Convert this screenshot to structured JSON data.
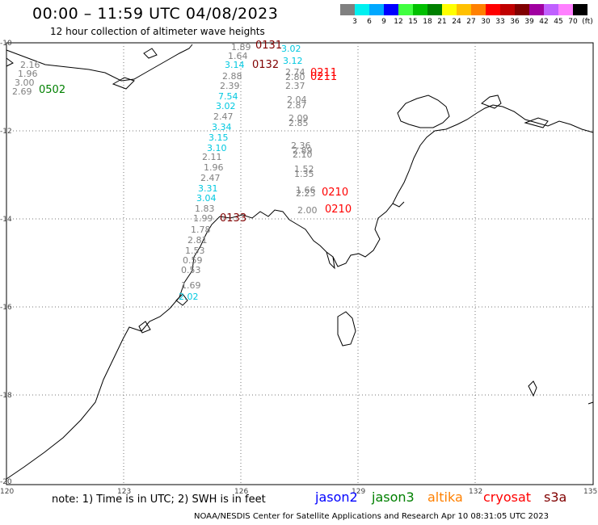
{
  "title": "00:00 – 11:59 UTC 04/08/2023",
  "subtitle": "12 hour collection of altimeter wave heights",
  "scale": {
    "unit": "(ft)",
    "colors": [
      "#808080",
      "#00f0f0",
      "#00a8ff",
      "#0000ff",
      "#40ff40",
      "#00c000",
      "#008000",
      "#ffff00",
      "#ffc000",
      "#ff8000",
      "#ff0000",
      "#c00000",
      "#800000",
      "#a000a0",
      "#c060ff",
      "#ff80ff",
      "#000000"
    ],
    "labels": [
      "3",
      "6",
      "9",
      "12",
      "15",
      "18",
      "21",
      "24",
      "27",
      "30",
      "33",
      "36",
      "39",
      "42",
      "45",
      "70"
    ]
  },
  "axes": {
    "lat_labels": [
      "-10",
      "-12",
      "-14",
      "-16",
      "-18",
      "-20"
    ],
    "lon_labels": [
      "120",
      "123",
      "126",
      "129",
      "132",
      "135"
    ]
  },
  "observations": [
    {
      "t": "2.16",
      "c": "#808080"
    },
    {
      "t": "1.96",
      "c": "#808080"
    },
    {
      "t": "3.00",
      "c": "#808080"
    },
    {
      "t": "2.69",
      "c": "#808080"
    },
    {
      "t": "1.89",
      "c": "#808080"
    },
    {
      "t": "1.64",
      "c": "#808080"
    },
    {
      "t": "3.14",
      "c": "#00c8e0"
    },
    {
      "t": "2.88",
      "c": "#808080"
    },
    {
      "t": "2.39",
      "c": "#808080"
    },
    {
      "t": "7.54",
      "c": "#00c8e0"
    },
    {
      "t": "3.02",
      "c": "#00c8e0"
    },
    {
      "t": "2.47",
      "c": "#808080"
    },
    {
      "t": "3.34",
      "c": "#00c8e0"
    },
    {
      "t": "3.15",
      "c": "#00c8e0"
    },
    {
      "t": "3.10",
      "c": "#00c8e0"
    },
    {
      "t": "1.96",
      "c": "#808080"
    },
    {
      "t": "2.11",
      "c": "#808080"
    },
    {
      "t": "2.47",
      "c": "#808080"
    },
    {
      "t": "3.31",
      "c": "#00c8e0"
    },
    {
      "t": "3.04",
      "c": "#00c8e0"
    },
    {
      "t": "1.83",
      "c": "#808080"
    },
    {
      "t": "1.99",
      "c": "#808080"
    },
    {
      "t": "1.78",
      "c": "#808080"
    },
    {
      "t": "2.81",
      "c": "#808080"
    },
    {
      "t": "1.53",
      "c": "#808080"
    },
    {
      "t": "0.59",
      "c": "#808080"
    },
    {
      "t": "0.53",
      "c": "#808080"
    },
    {
      "t": "1.69",
      "c": "#808080"
    },
    {
      "t": "2.02",
      "c": "#00c8e0"
    },
    {
      "t": "3.02",
      "c": "#00c8e0"
    },
    {
      "t": "3.12",
      "c": "#00c8e0"
    },
    {
      "t": "2.74",
      "c": "#808080"
    },
    {
      "t": "2.80",
      "c": "#808080"
    },
    {
      "t": "2.37",
      "c": "#808080"
    },
    {
      "t": "2.04",
      "c": "#808080"
    },
    {
      "t": "2.87",
      "c": "#808080"
    },
    {
      "t": "2.09",
      "c": "#808080"
    },
    {
      "t": "2.85",
      "c": "#808080"
    },
    {
      "t": "2.36",
      "c": "#808080"
    },
    {
      "t": "2.89",
      "c": "#808080"
    },
    {
      "t": "2.10",
      "c": "#808080"
    },
    {
      "t": "1.52",
      "c": "#808080"
    },
    {
      "t": "1.35",
      "c": "#808080"
    },
    {
      "t": "1.66",
      "c": "#808080"
    },
    {
      "t": "2.23",
      "c": "#808080"
    },
    {
      "t": "2.00",
      "c": "#808080"
    }
  ],
  "time_tags": [
    {
      "t": "0502",
      "c": "#008000"
    },
    {
      "t": "0131",
      "c": "#800000"
    },
    {
      "t": "0132",
      "c": "#800000"
    },
    {
      "t": "0211",
      "c": "#ff0000"
    },
    {
      "t": "0211",
      "c": "#ff0000"
    },
    {
      "t": "0210",
      "c": "#ff0000"
    },
    {
      "t": "0210",
      "c": "#ff0000"
    },
    {
      "t": "0133",
      "c": "#800000"
    }
  ],
  "note": "note: 1) Time is in UTC; 2) SWH is in feet",
  "satellites": [
    {
      "name": "jason2",
      "color": "#0000ff"
    },
    {
      "name": "jason3",
      "color": "#008000"
    },
    {
      "name": "altika",
      "color": "#ff8000"
    },
    {
      "name": "cryosat",
      "color": "#ff0000"
    },
    {
      "name": "s3a",
      "color": "#800000"
    }
  ],
  "credit": "NOAA/NESDIS Center for Satellite Applications and Research   Apr 10 08:31:05 UTC 2023"
}
